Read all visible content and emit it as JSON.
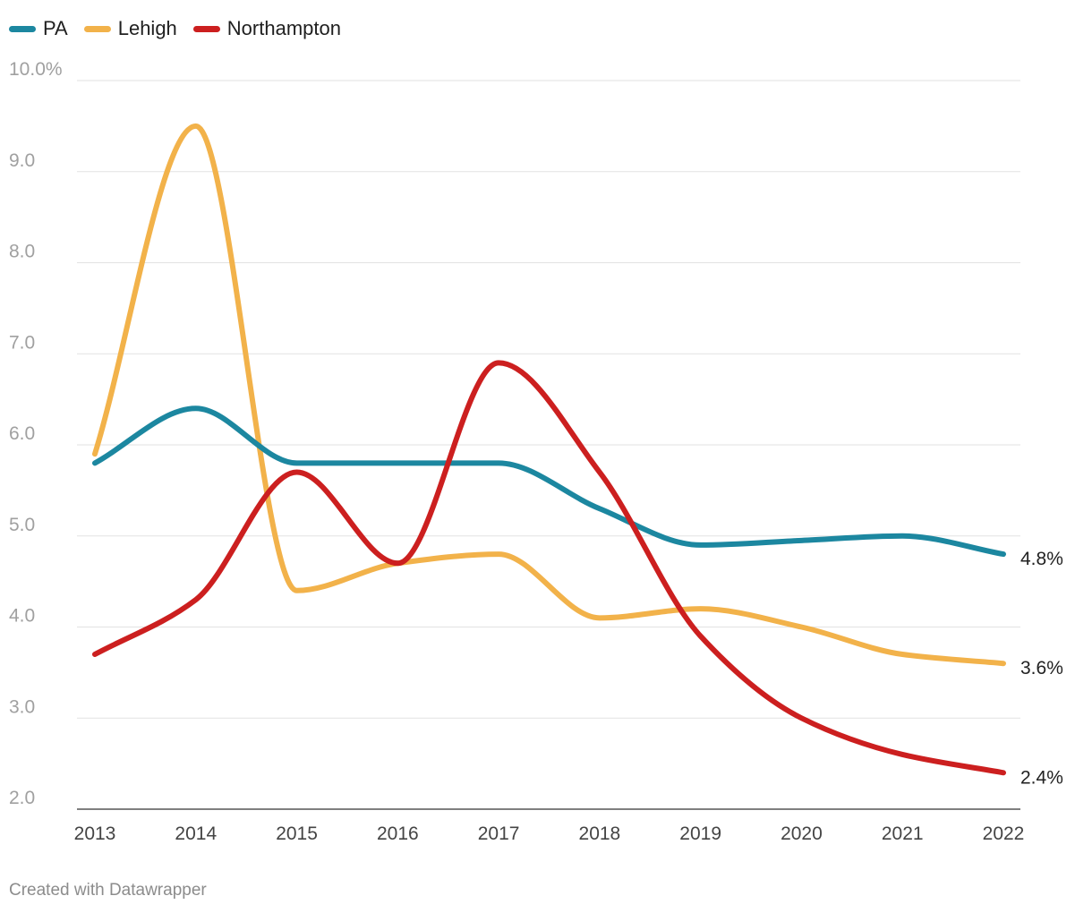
{
  "legend": [
    {
      "name": "PA",
      "color": "#1c87a0"
    },
    {
      "name": "Lehigh",
      "color": "#f2b24a"
    },
    {
      "name": "Northampton",
      "color": "#cc1f1f"
    }
  ],
  "footer": {
    "credit": "Created with Datawrapper"
  },
  "chart_data": {
    "type": "line",
    "title": "",
    "xlabel": "",
    "ylabel": "",
    "x": [
      2013,
      2014,
      2015,
      2016,
      2017,
      2018,
      2019,
      2020,
      2021,
      2022
    ],
    "y_ticks": [
      "10.0%",
      "9.0",
      "8.0",
      "7.0",
      "6.0",
      "5.0",
      "4.0",
      "3.0",
      "2.0"
    ],
    "ylim": [
      2,
      10
    ],
    "grid": true,
    "legend_position": "top-left",
    "series": [
      {
        "name": "PA",
        "color": "#1c87a0",
        "values": [
          5.8,
          6.4,
          5.8,
          5.8,
          5.8,
          5.3,
          4.9,
          4.95,
          5.0,
          4.8
        ],
        "end_label": "4.8%"
      },
      {
        "name": "Lehigh",
        "color": "#f2b24a",
        "values": [
          5.9,
          9.5,
          4.4,
          4.7,
          4.8,
          4.1,
          4.2,
          4.0,
          3.7,
          3.6
        ],
        "end_label": "3.6%"
      },
      {
        "name": "Northampton",
        "color": "#cc1f1f",
        "values": [
          3.7,
          4.3,
          5.7,
          4.7,
          6.9,
          5.7,
          3.9,
          3.0,
          2.6,
          2.4
        ],
        "end_label": "2.4%"
      }
    ]
  }
}
